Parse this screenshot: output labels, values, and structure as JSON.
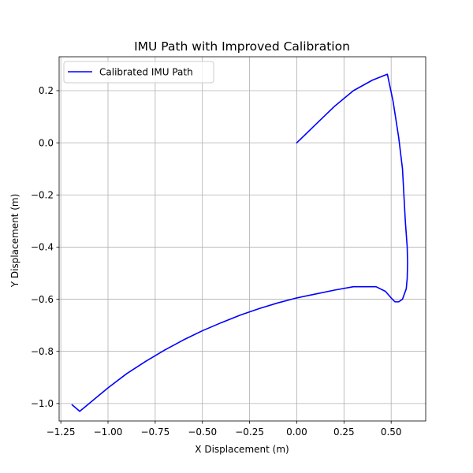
{
  "chart_data": {
    "type": "line",
    "title": "IMU Path with Improved Calibration",
    "xlabel": "X Displacement (m)",
    "ylabel": "Y Displacement (m)",
    "xlim": [
      -1.259,
      0.683
    ],
    "ylim": [
      -1.067,
      0.33
    ],
    "x_ticks": [
      -1.25,
      -1.0,
      -0.75,
      -0.5,
      -0.25,
      0.0,
      0.25,
      0.5
    ],
    "x_tick_labels": [
      "−1.25",
      "−1.00",
      "−0.75",
      "−0.50",
      "−0.25",
      "0.00",
      "0.25",
      "0.50"
    ],
    "y_ticks": [
      0.2,
      0.0,
      -0.2,
      -0.4,
      -0.6,
      -0.8,
      -1.0
    ],
    "y_tick_labels": [
      "0.2",
      "0.0",
      "−0.2",
      "−0.4",
      "−0.6",
      "−0.8",
      "−1.0"
    ],
    "grid": true,
    "legend_position": "top-left",
    "colors": {
      "series": "#0000ff",
      "grid": "#b0b0b0",
      "frame": "#000000"
    },
    "series": [
      {
        "name": "Calibrated IMU Path",
        "color": "#0000ff",
        "points": [
          [
            0.0,
            0.0
          ],
          [
            0.1,
            0.07
          ],
          [
            0.2,
            0.14
          ],
          [
            0.3,
            0.2
          ],
          [
            0.4,
            0.24
          ],
          [
            0.48,
            0.263
          ],
          [
            0.51,
            0.16
          ],
          [
            0.54,
            0.02
          ],
          [
            0.56,
            -0.1
          ],
          [
            0.575,
            -0.3
          ],
          [
            0.585,
            -0.4
          ],
          [
            0.587,
            -0.46
          ],
          [
            0.585,
            -0.52
          ],
          [
            0.58,
            -0.56
          ],
          [
            0.56,
            -0.6
          ],
          [
            0.54,
            -0.61
          ],
          [
            0.52,
            -0.61
          ],
          [
            0.5,
            -0.595
          ],
          [
            0.47,
            -0.57
          ],
          [
            0.42,
            -0.552
          ],
          [
            0.3,
            -0.552
          ],
          [
            0.2,
            -0.565
          ],
          [
            0.1,
            -0.58
          ],
          [
            0.0,
            -0.595
          ],
          [
            -0.1,
            -0.614
          ],
          [
            -0.2,
            -0.636
          ],
          [
            -0.3,
            -0.661
          ],
          [
            -0.4,
            -0.69
          ],
          [
            -0.5,
            -0.721
          ],
          [
            -0.6,
            -0.756
          ],
          [
            -0.7,
            -0.795
          ],
          [
            -0.8,
            -0.838
          ],
          [
            -0.9,
            -0.885
          ],
          [
            -1.0,
            -0.94
          ],
          [
            -1.1,
            -1.0
          ],
          [
            -1.15,
            -1.03
          ],
          [
            -1.19,
            -1.005
          ]
        ]
      }
    ]
  }
}
